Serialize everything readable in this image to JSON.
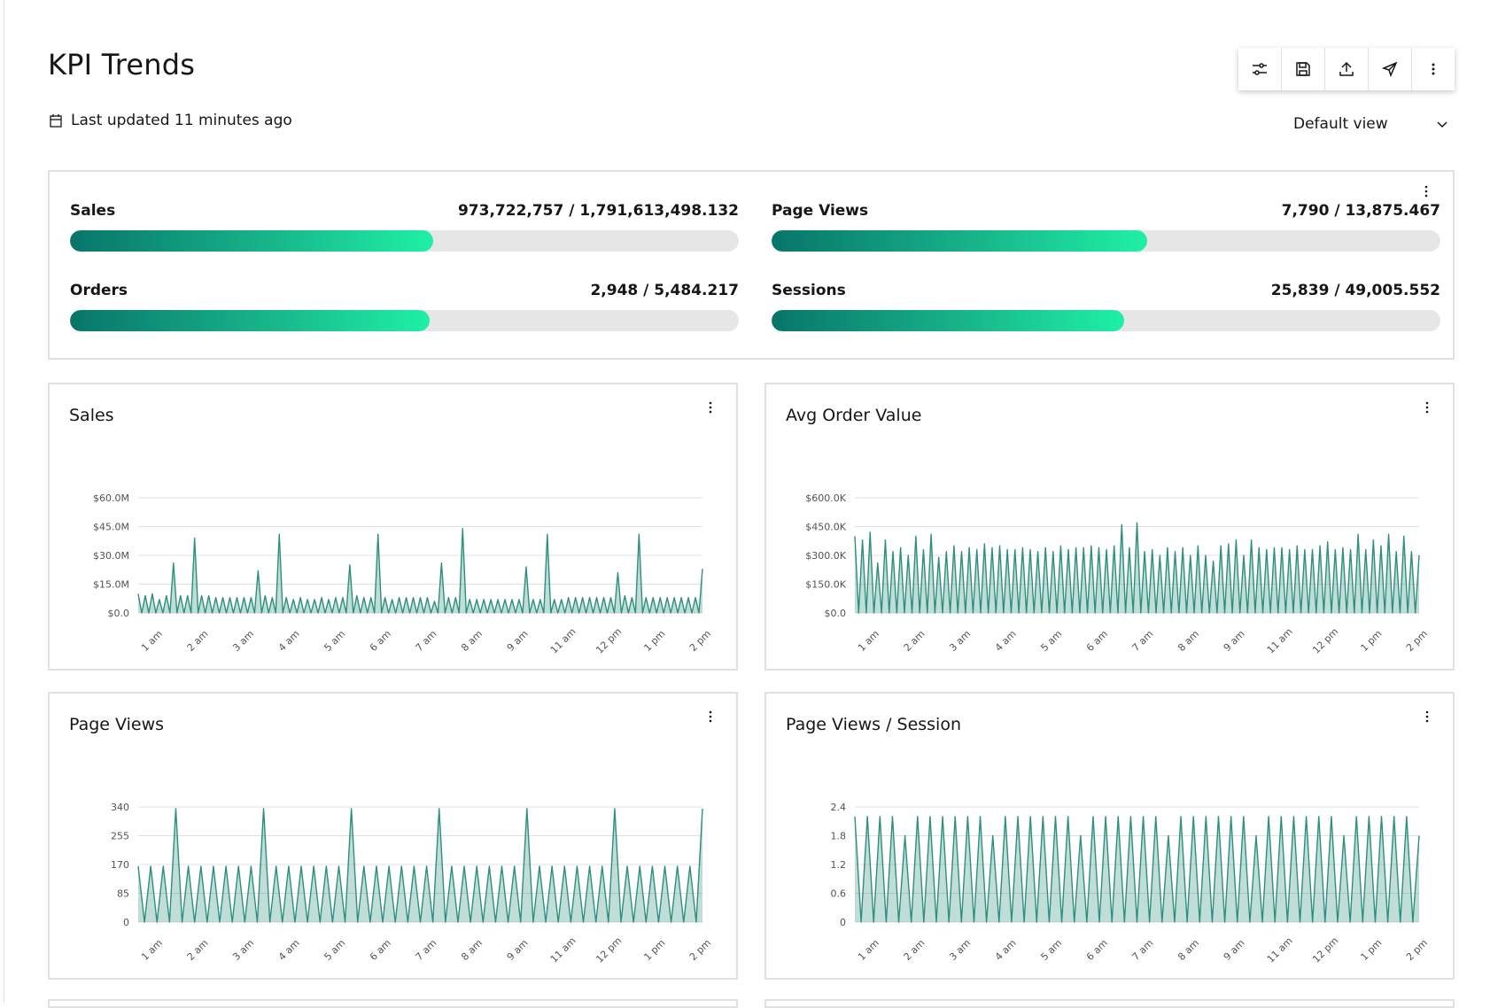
{
  "page": {
    "title": "KPI Trends",
    "updated": "Last updated 11 minutes ago"
  },
  "toolbar": [
    {
      "name": "filter-settings",
      "icon": "sliders-icon"
    },
    {
      "name": "save",
      "icon": "save-icon"
    },
    {
      "name": "export",
      "icon": "upload-icon"
    },
    {
      "name": "share",
      "icon": "send-icon"
    },
    {
      "name": "more",
      "icon": "overflow-menu-icon"
    }
  ],
  "view_select": {
    "value": "Default view"
  },
  "kpis": [
    {
      "label": "Sales",
      "value": "973,722,757 / 1,791,613,498.132",
      "fraction": 0.5435
    },
    {
      "label": "Page Views",
      "value": "7,790 / 13,875.467",
      "fraction": 0.5614
    },
    {
      "label": "Orders",
      "value": "2,948 / 5,484.217",
      "fraction": 0.5375
    },
    {
      "label": "Sessions",
      "value": "25,839 / 49,005.552",
      "fraction": 0.5273
    }
  ],
  "colors": {
    "line": "#2d8f7e",
    "area": "#2d8f7e",
    "grid": "#e0e0e0",
    "bar_start": "#08756a",
    "bar_end": "#1ff0a6",
    "bar_track": "#e6e6e6"
  },
  "chart_data": [
    {
      "type": "area",
      "title": "Sales",
      "yticks": [
        "$0.0",
        "$15.0M",
        "$30.0M",
        "$45.0M",
        "$60.0M"
      ],
      "ylim": [
        0,
        60000000
      ],
      "x_tick_labels": [
        "1 am",
        "2 am",
        "3 am",
        "4 am",
        "5 am",
        "6 am",
        "7 am",
        "8 am",
        "9 am",
        "11 am",
        "12 pm",
        "1 pm",
        "2 pm"
      ],
      "values": [
        10000000,
        0,
        9000000,
        0,
        10000000,
        0,
        7000000,
        0,
        9000000,
        0,
        26000000,
        0,
        9000000,
        0,
        9000000,
        0,
        39000000,
        0,
        9000000,
        0,
        9000000,
        0,
        8000000,
        0,
        8000000,
        0,
        8000000,
        0,
        8000000,
        0,
        8000000,
        0,
        8000000,
        0,
        22000000,
        0,
        9000000,
        0,
        8000000,
        0,
        41000000,
        0,
        8000000,
        0,
        7000000,
        0,
        8000000,
        0,
        7000000,
        0,
        7000000,
        0,
        8000000,
        0,
        7000000,
        0,
        8000000,
        0,
        8000000,
        0,
        25000000,
        0,
        9000000,
        0,
        8000000,
        0,
        8000000,
        0,
        41000000,
        0,
        8000000,
        0,
        7000000,
        0,
        8000000,
        0,
        8000000,
        0,
        8000000,
        0,
        8000000,
        0,
        8000000,
        0,
        6000000,
        0,
        26000000,
        0,
        8000000,
        0,
        8000000,
        0,
        44000000,
        0,
        7000000,
        0,
        7000000,
        0,
        7000000,
        0,
        7000000,
        0,
        7000000,
        0,
        7000000,
        0,
        7000000,
        0,
        7000000,
        0,
        24000000,
        0,
        7000000,
        0,
        7000000,
        0,
        41000000,
        0,
        7000000,
        0,
        7000000,
        0,
        8000000,
        0,
        8000000,
        0,
        8000000,
        0,
        8000000,
        0,
        8000000,
        0,
        8000000,
        0,
        8000000,
        0,
        21000000,
        0,
        9000000,
        0,
        8000000,
        0,
        41000000,
        0,
        8000000,
        0,
        8000000,
        0,
        8000000,
        0,
        8000000,
        0,
        8000000,
        0,
        8000000,
        0,
        8000000,
        0,
        8000000,
        0,
        23000000
      ]
    },
    {
      "type": "area",
      "title": "Avg Order Value",
      "yticks": [
        "$0.0",
        "$150.0K",
        "$300.0K",
        "$450.0K",
        "$600.0K"
      ],
      "ylim": [
        0,
        600000
      ],
      "x_tick_labels": [
        "1 am",
        "2 am",
        "3 am",
        "4 am",
        "5 am",
        "6 am",
        "7 am",
        "8 am",
        "9 am",
        "11 am",
        "12 pm",
        "1 pm",
        "2 pm"
      ],
      "values": [
        400000,
        0,
        380000,
        0,
        420000,
        0,
        260000,
        0,
        380000,
        0,
        320000,
        0,
        340000,
        0,
        300000,
        0,
        400000,
        0,
        330000,
        0,
        410000,
        0,
        290000,
        0,
        320000,
        0,
        350000,
        0,
        320000,
        0,
        340000,
        0,
        330000,
        0,
        360000,
        0,
        340000,
        0,
        350000,
        0,
        330000,
        0,
        330000,
        0,
        340000,
        0,
        330000,
        0,
        320000,
        0,
        340000,
        0,
        320000,
        0,
        350000,
        0,
        330000,
        0,
        340000,
        0,
        340000,
        0,
        350000,
        0,
        340000,
        0,
        330000,
        0,
        350000,
        0,
        460000,
        0,
        340000,
        0,
        470000,
        0,
        320000,
        0,
        330000,
        0,
        300000,
        0,
        340000,
        0,
        320000,
        0,
        340000,
        0,
        300000,
        0,
        350000,
        0,
        300000,
        0,
        270000,
        0,
        350000,
        0,
        360000,
        0,
        380000,
        0,
        300000,
        0,
        380000,
        0,
        340000,
        0,
        330000,
        0,
        340000,
        0,
        340000,
        0,
        330000,
        0,
        350000,
        0,
        330000,
        0,
        330000,
        0,
        350000,
        0,
        370000,
        0,
        330000,
        0,
        340000,
        0,
        330000,
        0,
        410000,
        0,
        330000,
        0,
        380000,
        0,
        350000,
        0,
        410000,
        0,
        320000,
        0,
        400000,
        0,
        320000,
        0,
        300000
      ]
    },
    {
      "type": "area",
      "title": "Page Views",
      "yticks": [
        "0",
        "85",
        "170",
        "255",
        "340"
      ],
      "ylim": [
        0,
        340
      ],
      "x_tick_labels": [
        "1 am",
        "2 am",
        "3 am",
        "4 am",
        "5 am",
        "6 am",
        "7 am",
        "8 am",
        "9 am",
        "11 am",
        "12 pm",
        "1 pm",
        "2 pm"
      ],
      "values": [
        165,
        0,
        165,
        0,
        165,
        0,
        335,
        0,
        165,
        0,
        165,
        0,
        165,
        0,
        165,
        0,
        165,
        0,
        165,
        0,
        335,
        0,
        165,
        0,
        165,
        0,
        165,
        0,
        165,
        0,
        165,
        0,
        165,
        0,
        335,
        0,
        165,
        0,
        165,
        0,
        165,
        0,
        165,
        0,
        165,
        0,
        165,
        0,
        335,
        0,
        165,
        0,
        165,
        0,
        165,
        0,
        165,
        0,
        165,
        0,
        165,
        0,
        335,
        0,
        165,
        0,
        165,
        0,
        165,
        0,
        165,
        0,
        165,
        0,
        165,
        0,
        335,
        0,
        165,
        0,
        165,
        0,
        165,
        0,
        165,
        0,
        165,
        0,
        165,
        0,
        335
      ]
    },
    {
      "type": "area",
      "title": "Page Views / Session",
      "yticks": [
        "0",
        "0.6",
        "1.2",
        "1.8",
        "2.4"
      ],
      "ylim": [
        0,
        2.4
      ],
      "x_tick_labels": [
        "1 am",
        "2 am",
        "3 am",
        "4 am",
        "5 am",
        "6 am",
        "7 am",
        "8 am",
        "9 am",
        "11 am",
        "12 pm",
        "1 pm",
        "2 pm"
      ],
      "values": [
        2.2,
        0,
        2.2,
        0,
        2.2,
        0,
        2.2,
        0,
        1.8,
        0,
        2.2,
        0,
        2.2,
        0,
        2.2,
        0,
        2.2,
        0,
        2.2,
        0,
        2.2,
        0,
        1.8,
        0,
        2.2,
        0,
        2.2,
        0,
        2.2,
        0,
        2.2,
        0,
        2.2,
        0,
        2.2,
        0,
        1.8,
        0,
        2.2,
        0,
        2.2,
        0,
        2.2,
        0,
        2.2,
        0,
        2.2,
        0,
        2.2,
        0,
        1.8,
        0,
        2.2,
        0,
        2.2,
        0,
        2.2,
        0,
        2.2,
        0,
        2.2,
        0,
        2.2,
        0,
        1.8,
        0,
        2.2,
        0,
        2.2,
        0,
        2.2,
        0,
        2.2,
        0,
        2.2,
        0,
        2.2,
        0,
        1.8,
        0,
        2.2,
        0,
        2.2,
        0,
        2.2,
        0,
        2.2,
        0,
        2.2,
        0,
        1.8
      ]
    }
  ]
}
